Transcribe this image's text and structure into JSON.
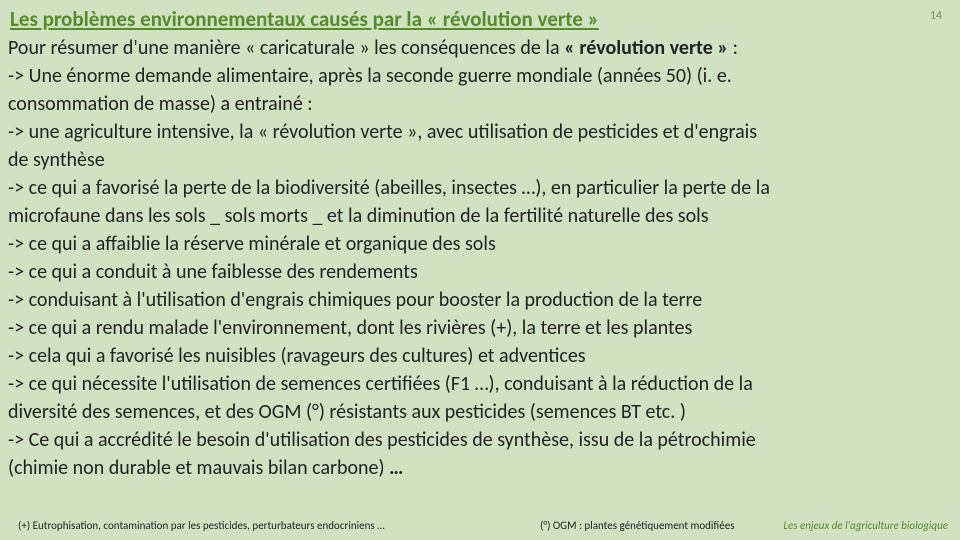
{
  "slide": {
    "title": "Les problèmes environnementaux causés par la « révolution verte »",
    "page_number": "14",
    "body_lines": [
      "Pour résumer d'une manière « caricaturale » les conséquences de la <strong>« révolution verte »</strong> :",
      "-> Une énorme demande alimentaire, après la seconde guerre mondiale (années 50) (i. e.",
      "consommation de masse) a entrainé :",
      "-> une agriculture intensive, la « révolution verte », avec utilisation de pesticides et d'engrais",
      "de synthèse",
      "-> ce qui a favorisé la perte de la biodiversité (abeilles, insectes …), en particulier la perte de la",
      "microfaune dans les sols _ sols morts _ et la diminution de la fertilité naturelle des sols",
      "-> ce qui a affaiblie la réserve minérale et organique des sols",
      "-> ce qui a conduit à une faiblesse des rendements",
      "-> conduisant à l'utilisation d'engrais chimiques pour booster la production de la terre",
      "-> ce qui a rendu malade l'environnement, dont les rivières (+), la terre et les plantes",
      "-> cela qui a favorisé les nuisibles (ravageurs des cultures) et adventices",
      "-> ce qui nécessite l'utilisation de semences certifiées (F1 …), conduisant à la réduction de la",
      "diversité des semences, et des OGM (°) résistants aux pesticides (semences BT etc. )",
      "-> Ce qui a accrédité le besoin d'utilisation des pesticides de synthèse, issu de la pétrochimie",
      "(chimie non durable et mauvais bilan carbone) <strong>…</strong>"
    ],
    "footnote_left": "(+) Eutrophisation, contamination par les pesticides, perturbateurs endocriniens …",
    "footnote_center": "(°) OGM : plantes génétiquement modifiées",
    "footnote_right": "Les enjeux de l'agriculture biologique"
  },
  "style": {
    "background_color": "#d1e2c2",
    "title_color": "#568b2a",
    "text_color": "#222222",
    "page_number_color": "#7f8a7a",
    "title_fontsize": 21,
    "body_fontsize": 20,
    "line_height": 28,
    "footnote_fontsize": 11,
    "footnote_right_color": "#568b2a"
  }
}
